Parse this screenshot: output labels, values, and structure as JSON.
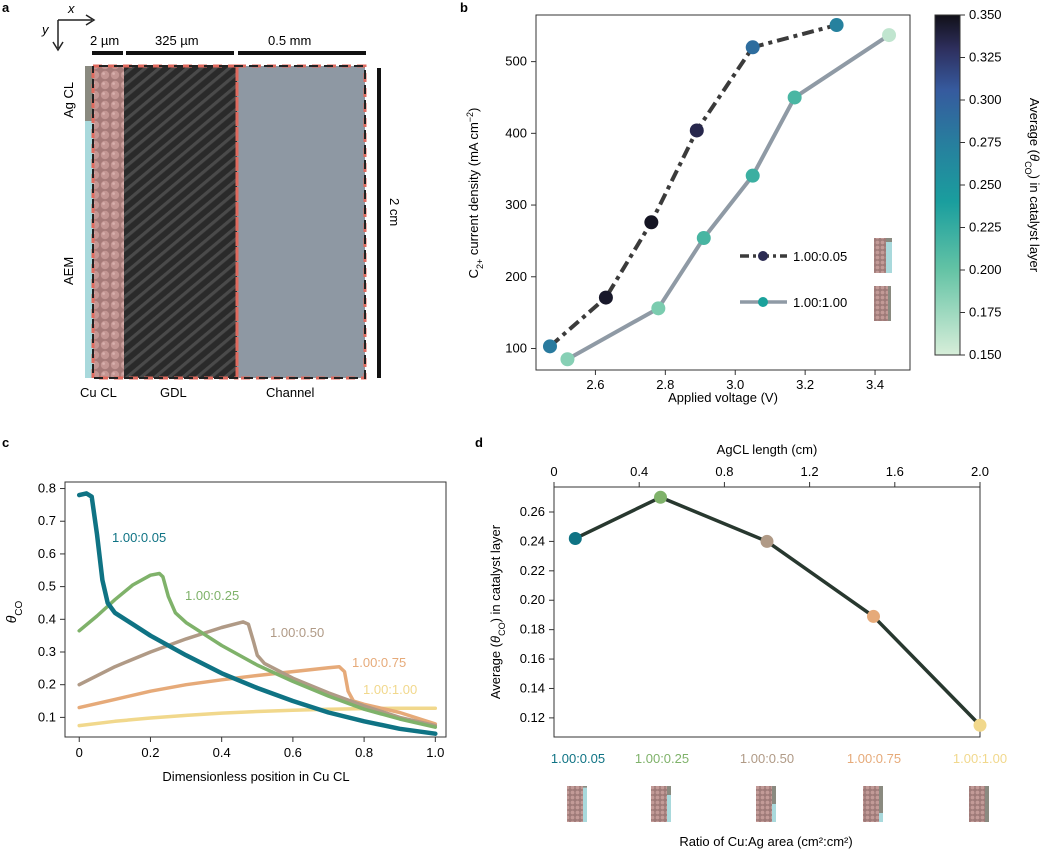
{
  "panels": {
    "a": {
      "letter": "a",
      "axis_x": "x",
      "axis_y": "y",
      "dims": [
        "2 µm",
        "325 µm",
        "0.5 mm"
      ],
      "height_label": "2 cm",
      "layer_labels": {
        "ag_cl": "Ag CL",
        "aem": "AEM"
      },
      "bottom_labels": [
        "Cu CL",
        "GDL",
        "Channel"
      ],
      "colors": {
        "cu": "#b88787",
        "gdl": "#2b2b2b",
        "channel": "#8e98a3",
        "aem": "#a9d9dc",
        "border": "#e06a5e"
      }
    },
    "b": {
      "letter": "b"
    },
    "c": {
      "letter": "c"
    },
    "d": {
      "letter": "d"
    }
  },
  "chart_data": [
    {
      "id": "b",
      "type": "line",
      "xlabel": "Applied voltage (V)",
      "ylabel_main": "C",
      "ylabel_sub": "2+",
      "ylabel_rest": " current density (mA cm",
      "ylabel_sup": "−2",
      "ylabel_end": ")",
      "xlim": [
        2.43,
        3.5
      ],
      "ylim": [
        70,
        565
      ],
      "xticks": [
        "2.6",
        "2.8",
        "3.0",
        "3.2",
        "3.4"
      ],
      "xtick_values": [
        2.6,
        2.8,
        3.0,
        3.2,
        3.4
      ],
      "yticks": [
        "100",
        "200",
        "300",
        "400",
        "500"
      ],
      "ytick_values": [
        100,
        200,
        300,
        400,
        500
      ],
      "series": [
        {
          "name": "1.00:0.05",
          "style": "dashdot",
          "color": "#3b3b3b",
          "x": [
            2.47,
            2.63,
            2.76,
            2.89,
            3.05,
            3.29
          ],
          "y": [
            103,
            171,
            276,
            404,
            520,
            551
          ],
          "theta": [
            0.278,
            0.345,
            0.347,
            0.335,
            0.29,
            0.272
          ]
        },
        {
          "name": "1.00:1.00",
          "style": "solid",
          "color": "#8f9aa5",
          "x": [
            2.52,
            2.78,
            2.91,
            3.05,
            3.17,
            3.44
          ],
          "y": [
            85,
            156,
            254,
            341,
            450,
            537
          ],
          "theta": [
            0.185,
            0.19,
            0.215,
            0.222,
            0.214,
            0.16
          ]
        }
      ],
      "colorbar": {
        "label_pre": "Average (",
        "label_theta": "θ",
        "label_sub": "CO",
        "label_post": ") in catalyst layer",
        "range": [
          0.15,
          0.35
        ],
        "ticks": [
          "0.150",
          "0.175",
          "0.200",
          "0.225",
          "0.250",
          "0.275",
          "0.300",
          "0.325",
          "0.350"
        ],
        "tick_values": [
          0.15,
          0.175,
          0.2,
          0.225,
          0.25,
          0.275,
          0.3,
          0.325,
          0.35
        ]
      },
      "legend": "center-right"
    },
    {
      "id": "c",
      "type": "line",
      "xlabel": "Dimensionless position in Cu CL",
      "ylabel_theta": "θ",
      "ylabel_sub": "CO",
      "xlim": [
        -0.04,
        1.03
      ],
      "ylim": [
        0.04,
        0.82
      ],
      "xticks": [
        "0",
        "0.2",
        "0.4",
        "0.6",
        "0.8",
        "1.0"
      ],
      "xtick_values": [
        0,
        0.2,
        0.4,
        0.6,
        0.8,
        1.0
      ],
      "yticks": [
        "0.1",
        "0.2",
        "0.3",
        "0.4",
        "0.5",
        "0.6",
        "0.7",
        "0.8"
      ],
      "ytick_values": [
        0.1,
        0.2,
        0.3,
        0.4,
        0.5,
        0.6,
        0.7,
        0.8
      ],
      "series": [
        {
          "name": "1.00:0.05",
          "color": "#0f7384",
          "x": [
            0,
            0.02,
            0.035,
            0.05,
            0.065,
            0.08,
            0.1,
            0.15,
            0.2,
            0.3,
            0.4,
            0.5,
            0.6,
            0.7,
            0.8,
            0.9,
            1.0
          ],
          "y": [
            0.78,
            0.785,
            0.775,
            0.66,
            0.52,
            0.45,
            0.42,
            0.385,
            0.35,
            0.29,
            0.235,
            0.19,
            0.15,
            0.115,
            0.088,
            0.065,
            0.05
          ]
        },
        {
          "name": "1.00:0.25",
          "color": "#7fb26a",
          "x": [
            0,
            0.05,
            0.1,
            0.15,
            0.2,
            0.225,
            0.235,
            0.25,
            0.27,
            0.3,
            0.4,
            0.5,
            0.6,
            0.7,
            0.8,
            0.9,
            1.0
          ],
          "y": [
            0.365,
            0.41,
            0.46,
            0.505,
            0.535,
            0.54,
            0.53,
            0.47,
            0.42,
            0.39,
            0.32,
            0.26,
            0.21,
            0.165,
            0.125,
            0.095,
            0.07
          ]
        },
        {
          "name": "1.00:0.50",
          "color": "#b09a86",
          "x": [
            0,
            0.1,
            0.2,
            0.3,
            0.4,
            0.46,
            0.475,
            0.49,
            0.5,
            0.52,
            0.6,
            0.7,
            0.8,
            0.9,
            1.0
          ],
          "y": [
            0.2,
            0.255,
            0.3,
            0.34,
            0.375,
            0.392,
            0.385,
            0.33,
            0.29,
            0.265,
            0.22,
            0.175,
            0.135,
            0.1,
            0.075
          ]
        },
        {
          "name": "1.00:0.75",
          "color": "#e6aa79",
          "x": [
            0,
            0.1,
            0.2,
            0.3,
            0.4,
            0.5,
            0.6,
            0.7,
            0.73,
            0.745,
            0.755,
            0.77,
            0.8,
            0.9,
            1.0
          ],
          "y": [
            0.13,
            0.155,
            0.18,
            0.2,
            0.215,
            0.228,
            0.24,
            0.252,
            0.255,
            0.24,
            0.18,
            0.15,
            0.14,
            0.115,
            0.08
          ]
        },
        {
          "name": "1.00:1.00",
          "color": "#f1d88c",
          "x": [
            0,
            0.1,
            0.2,
            0.3,
            0.4,
            0.5,
            0.6,
            0.7,
            0.8,
            0.9,
            1.0
          ],
          "y": [
            0.075,
            0.088,
            0.098,
            0.106,
            0.113,
            0.118,
            0.122,
            0.125,
            0.127,
            0.128,
            0.128
          ]
        }
      ],
      "labels": [
        "1.00:0.05",
        "1.00:0.25",
        "1.00:0.50",
        "1.00:0.75",
        "1.00:1.00"
      ]
    },
    {
      "id": "d",
      "type": "line",
      "top_xlabel": "AgCL length (cm)",
      "xlabel": "Ratio of Cu:Ag area (cm²:cm²)",
      "ylabel_pre": "Average (",
      "ylabel_theta": "θ",
      "ylabel_sub": "CO",
      "ylabel_post": ") in catalyst layer",
      "xlim": [
        0,
        2.0
      ],
      "ylim": [
        0.107,
        0.277
      ],
      "top_xticks": [
        "0",
        "0.4",
        "0.8",
        "1.2",
        "1.6",
        "2.0"
      ],
      "top_xtick_values": [
        0,
        0.4,
        0.8,
        1.2,
        1.6,
        2.0
      ],
      "yticks": [
        "0.12",
        "0.14",
        "0.16",
        "0.18",
        "0.20",
        "0.22",
        "0.24",
        "0.26"
      ],
      "ytick_values": [
        0.12,
        0.14,
        0.16,
        0.18,
        0.2,
        0.22,
        0.24,
        0.26
      ],
      "line_color": "#28382f",
      "categories": [
        "1.00:0.05",
        "1.00:0.25",
        "1.00:0.50",
        "1.00:0.75",
        "1.00:1.00"
      ],
      "x": [
        0.1,
        0.5,
        1.0,
        1.5,
        2.0
      ],
      "values": [
        0.242,
        0.27,
        0.24,
        0.189,
        0.115
      ],
      "colors": [
        "#0f7384",
        "#7fb26a",
        "#b09a86",
        "#e6aa79",
        "#f1d88c"
      ]
    }
  ]
}
